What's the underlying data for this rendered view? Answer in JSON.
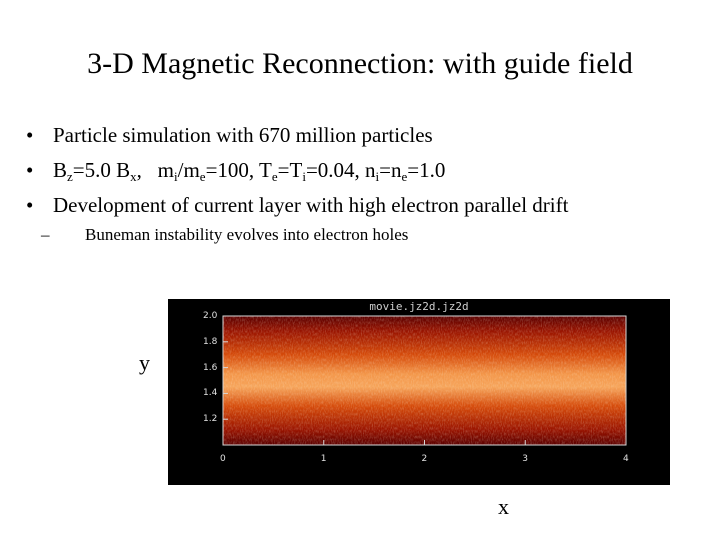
{
  "slide": {
    "title": "3-D Magnetic Reconnection: with guide field",
    "bullets": [
      {
        "text": "Particle simulation with 670 million particles"
      },
      {
        "segments": [
          "B",
          "z",
          "=5.0 B",
          "x",
          ",   m",
          "i",
          "/m",
          "e",
          "=100, T",
          "e",
          "=T",
          "i",
          "=0.04, n",
          "i",
          "=n",
          "e",
          "=1.0"
        ]
      },
      {
        "text": "Development of current layer with high electron parallel drift"
      }
    ],
    "sub_bullet": "Buneman instability evolves into electron holes",
    "bullet_glyph": "•",
    "dash_glyph": "–"
  },
  "figure": {
    "plot_title": "movie.jz2d.jz2d",
    "y_axis_label": "y",
    "x_axis_label": "x",
    "y_tick_labels": [
      "2.0",
      "1.8",
      "1.6",
      "1.4",
      "1.2"
    ],
    "x_tick_labels": [
      "0",
      "1",
      "2",
      "3",
      "4"
    ]
  },
  "chart_data": {
    "type": "heatmap",
    "title": "movie.jz2d.jz2d",
    "xlabel": "x",
    "ylabel": "y",
    "xlim": [
      0,
      4
    ],
    "ylim": [
      1.0,
      2.0
    ],
    "x_ticks": [
      0,
      1,
      2,
      3,
      4
    ],
    "y_ticks": [
      1.2,
      1.4,
      1.6,
      1.8,
      2.0
    ],
    "colormap": [
      "#5a0000",
      "#a31a00",
      "#e05a10",
      "#f7a050",
      "#ffe0b0"
    ],
    "layer_center_y": 1.58,
    "description_values": {
      "peak_band_y_range": [
        1.45,
        1.75
      ]
    }
  }
}
